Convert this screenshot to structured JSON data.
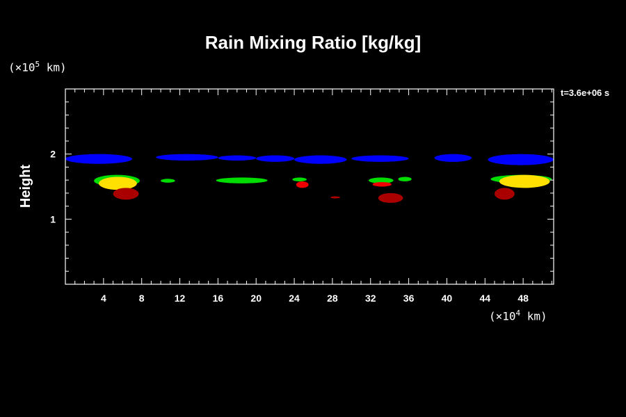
{
  "chart_data": {
    "type": "heatmap",
    "title": "Rain Mixing Ratio [kg/kg]",
    "ylabel": "Height",
    "xunit_prefix": "(×10",
    "xunit_exp": "4",
    "xunit_suffix": " km)",
    "yunit_prefix": "(×10",
    "yunit_exp": "5",
    "yunit_suffix": " km)",
    "time_annotation": "t=3.6e+06 s",
    "xlim": [
      0,
      51.2
    ],
    "ylim": [
      0,
      3.0
    ],
    "x_ticks": [
      4,
      8,
      12,
      16,
      20,
      24,
      28,
      32,
      36,
      40,
      44,
      48
    ],
    "y_ticks": [
      1,
      2
    ],
    "colors": {
      "blue": "#0000ff",
      "green": "#00dd00",
      "yellow": "#ffe000",
      "red": "#ee0000",
      "darkred": "#aa0000",
      "orange": "#e08800"
    },
    "regions": [
      {
        "color": "blue",
        "x": [
          0,
          7
        ],
        "y": [
          1.85,
          2.0
        ]
      },
      {
        "color": "blue",
        "x": [
          9.5,
          16
        ],
        "y": [
          1.9,
          2.0
        ]
      },
      {
        "color": "blue",
        "x": [
          16,
          20
        ],
        "y": [
          1.9,
          1.98
        ]
      },
      {
        "color": "blue",
        "x": [
          20,
          24
        ],
        "y": [
          1.88,
          1.98
        ]
      },
      {
        "color": "blue",
        "x": [
          24,
          29.5
        ],
        "y": [
          1.85,
          1.98
        ]
      },
      {
        "color": "blue",
        "x": [
          30,
          36
        ],
        "y": [
          1.88,
          1.98
        ]
      },
      {
        "color": "blue",
        "x": [
          38.7,
          42.6
        ],
        "y": [
          1.88,
          2.0
        ]
      },
      {
        "color": "blue",
        "x": [
          44.3,
          51.2
        ],
        "y": [
          1.83,
          2.0
        ]
      },
      {
        "color": "green",
        "x": [
          3,
          7.8
        ],
        "y": [
          1.5,
          1.68
        ]
      },
      {
        "color": "yellow",
        "x": [
          3.5,
          7.5
        ],
        "y": [
          1.45,
          1.65
        ]
      },
      {
        "color": "darkred",
        "x": [
          5,
          7.7
        ],
        "y": [
          1.3,
          1.48
        ]
      },
      {
        "color": "green",
        "x": [
          10,
          11.5
        ],
        "y": [
          1.56,
          1.62
        ]
      },
      {
        "color": "green",
        "x": [
          15.8,
          21.2
        ],
        "y": [
          1.55,
          1.64
        ]
      },
      {
        "color": "green",
        "x": [
          23.8,
          25.3
        ],
        "y": [
          1.58,
          1.64
        ]
      },
      {
        "color": "red",
        "x": [
          24.2,
          25.5
        ],
        "y": [
          1.48,
          1.58
        ]
      },
      {
        "color": "darkred",
        "x": [
          27.8,
          28.8
        ],
        "y": [
          1.32,
          1.35
        ]
      },
      {
        "color": "green",
        "x": [
          31.8,
          34.4
        ],
        "y": [
          1.55,
          1.64
        ]
      },
      {
        "color": "red",
        "x": [
          32.2,
          34.2
        ],
        "y": [
          1.5,
          1.57
        ]
      },
      {
        "color": "darkred",
        "x": [
          32.8,
          35.4
        ],
        "y": [
          1.25,
          1.4
        ]
      },
      {
        "color": "green",
        "x": [
          34.9,
          36.3
        ],
        "y": [
          1.58,
          1.65
        ]
      },
      {
        "color": "green",
        "x": [
          44.6,
          51
        ],
        "y": [
          1.55,
          1.68
        ]
      },
      {
        "color": "yellow",
        "x": [
          45.5,
          50.8
        ],
        "y": [
          1.48,
          1.68
        ]
      },
      {
        "color": "darkred",
        "x": [
          45,
          47.1
        ],
        "y": [
          1.3,
          1.48
        ]
      }
    ]
  }
}
